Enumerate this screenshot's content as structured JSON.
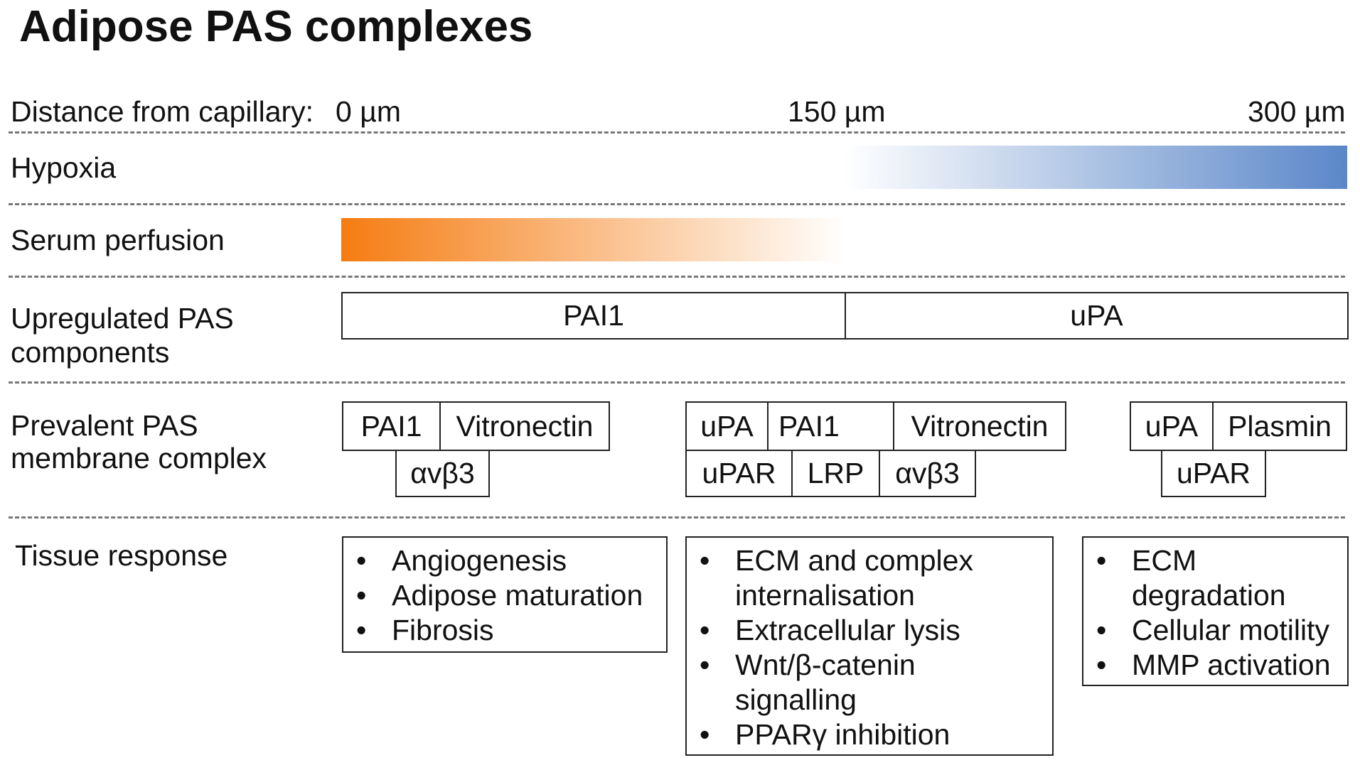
{
  "title": "Adipose PAS complexes",
  "rows": {
    "distance": {
      "label": "Distance from capillary:",
      "ticks": [
        "0 µm",
        "150 µm",
        "300 µm"
      ]
    },
    "hypoxia": {
      "label": "Hypoxia",
      "color": "#5b87c9"
    },
    "serum": {
      "label": "Serum perfusion",
      "color": "#f57c12"
    },
    "upregulated": {
      "label_line1": "Upregulated PAS",
      "label_line2": "components",
      "boxes": [
        "PAI1",
        "uPA"
      ]
    },
    "prevalent": {
      "label_line1": "Prevalent PAS",
      "label_line2": "membrane complex",
      "complex1": [
        "PAI1",
        "Vitronectin",
        "αvβ3"
      ],
      "complex2": [
        "uPA",
        "PAI1",
        "Vitronectin",
        "uPAR",
        "LRP",
        "αvβ3"
      ],
      "complex3": [
        "uPA",
        "Plasmin",
        "uPAR"
      ]
    },
    "tissue": {
      "label": "Tissue response",
      "bullet": "•",
      "list1": [
        "Angiogenesis",
        "Adipose maturation",
        "Fibrosis"
      ],
      "list2": [
        "ECM and complex internalisation",
        "Extracellular lysis",
        "Wnt/β-catenin signalling",
        "PPARγ inhibition"
      ],
      "list3": [
        "ECM degradation",
        "Cellular motility",
        "MMP activation"
      ]
    }
  }
}
